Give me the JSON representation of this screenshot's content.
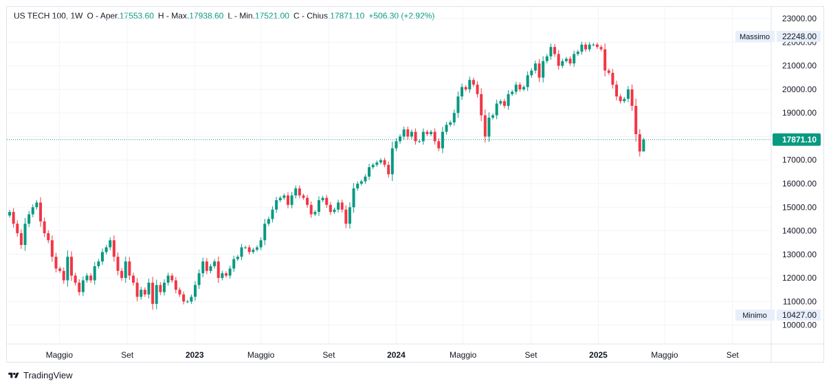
{
  "header": {
    "symbol": "US TECH 100, 1W",
    "o_label": "O - Aper.",
    "o_value": "17553.60",
    "h_label": "H - Max.",
    "h_value": "17938.60",
    "l_label": "L - Min.",
    "l_value": "17521.00",
    "c_label": "C - Chius.",
    "c_value": "17871.10",
    "change": "+506.30 (+2.92%)"
  },
  "colors": {
    "up": "#089981",
    "down": "#f23645",
    "grid": "#f0f3fa",
    "last": "#089981"
  },
  "branding": {
    "name": "TradingView",
    "icon": "tradingview-logo-icon"
  },
  "chart_data": {
    "type": "candlestick",
    "ylim": [
      9200,
      23500
    ],
    "y_ticks": [
      10000,
      11000,
      12000,
      13000,
      14000,
      15000,
      16000,
      17000,
      18000,
      19000,
      20000,
      21000,
      22000,
      23000
    ],
    "y_tick_labels": [
      "10000.00",
      "11000.00",
      "12000.00",
      "13000.00",
      "14000.00",
      "15000.00",
      "16000.00",
      "17000.00",
      "18000.00",
      "19000.00",
      "20000.00",
      "21000.00",
      "22000.00",
      "23000.00"
    ],
    "x_ticks": [
      {
        "label": "Maggio",
        "date": "2022-05-01",
        "bold": false
      },
      {
        "label": "Set",
        "date": "2022-09-01",
        "bold": false
      },
      {
        "label": "2023",
        "date": "2023-01-01",
        "bold": true
      },
      {
        "label": "Maggio",
        "date": "2023-05-01",
        "bold": false
      },
      {
        "label": "Set",
        "date": "2023-09-01",
        "bold": false
      },
      {
        "label": "2024",
        "date": "2024-01-01",
        "bold": true
      },
      {
        "label": "Maggio",
        "date": "2024-05-01",
        "bold": false
      },
      {
        "label": "Set",
        "date": "2024-09-01",
        "bold": false
      },
      {
        "label": "2025",
        "date": "2025-01-01",
        "bold": true
      },
      {
        "label": "Maggio",
        "date": "2025-05-01",
        "bold": false
      },
      {
        "label": "Set",
        "date": "2025-09-01",
        "bold": false
      }
    ],
    "x_range": [
      "2022-01-26",
      "2025-11-10"
    ],
    "first_candle_date": "2022-01-31",
    "candle_interval": "1W",
    "closes": [
      14800,
      14300,
      13900,
      13400,
      14300,
      14700,
      15000,
      15200,
      14400,
      13900,
      13600,
      12900,
      12400,
      12300,
      11900,
      12900,
      12100,
      11800,
      11400,
      11900,
      12100,
      11900,
      12500,
      12700,
      13100,
      13300,
      13600,
      12900,
      12300,
      12000,
      12700,
      12100,
      11800,
      11200,
      11500,
      11300,
      11800,
      10900,
      11700,
      11400,
      11800,
      12100,
      11900,
      11500,
      11300,
      11000,
      11000,
      11200,
      11700,
      12200,
      12700,
      12300,
      12500,
      12700,
      12000,
      12200,
      12100,
      12400,
      12800,
      12900,
      13300,
      13300,
      13100,
      13200,
      13300,
      13600,
      14300,
      14500,
      14900,
      15300,
      15400,
      15500,
      15100,
      15500,
      15800,
      15500,
      15400,
      15100,
      14700,
      14800,
      15300,
      15400,
      15100,
      14800,
      14900,
      15200,
      14900,
      14300,
      15000,
      15800,
      16000,
      16100,
      16300,
      16700,
      16800,
      16900,
      17000,
      16800,
      16400,
      17500,
      17800,
      18000,
      18300,
      18000,
      18200,
      17800,
      17800,
      18200,
      18100,
      18200,
      17800,
      17500,
      18200,
      18500,
      18600,
      19000,
      19700,
      20100,
      20000,
      20400,
      20200,
      19800,
      18900,
      18000,
      18800,
      18900,
      19400,
      19500,
      19300,
      19800,
      19900,
      20200,
      20000,
      20100,
      20600,
      20800,
      21100,
      20500,
      21200,
      21400,
      21800,
      21500,
      21000,
      21200,
      21300,
      21100,
      21500,
      21600,
      21900,
      21700,
      21900,
      21900,
      21800,
      21700,
      20800,
      20700,
      20200,
      19700,
      19500,
      19600,
      20000,
      19300,
      18100,
      17366,
      17871
    ],
    "last_value": 17871.1,
    "last_label": "17871.10",
    "high": {
      "label": "Massimo",
      "value": 22248.0,
      "text": "22248.00"
    },
    "low": {
      "label": "Minimo",
      "value": 10427.0,
      "text": "10427.00"
    }
  }
}
